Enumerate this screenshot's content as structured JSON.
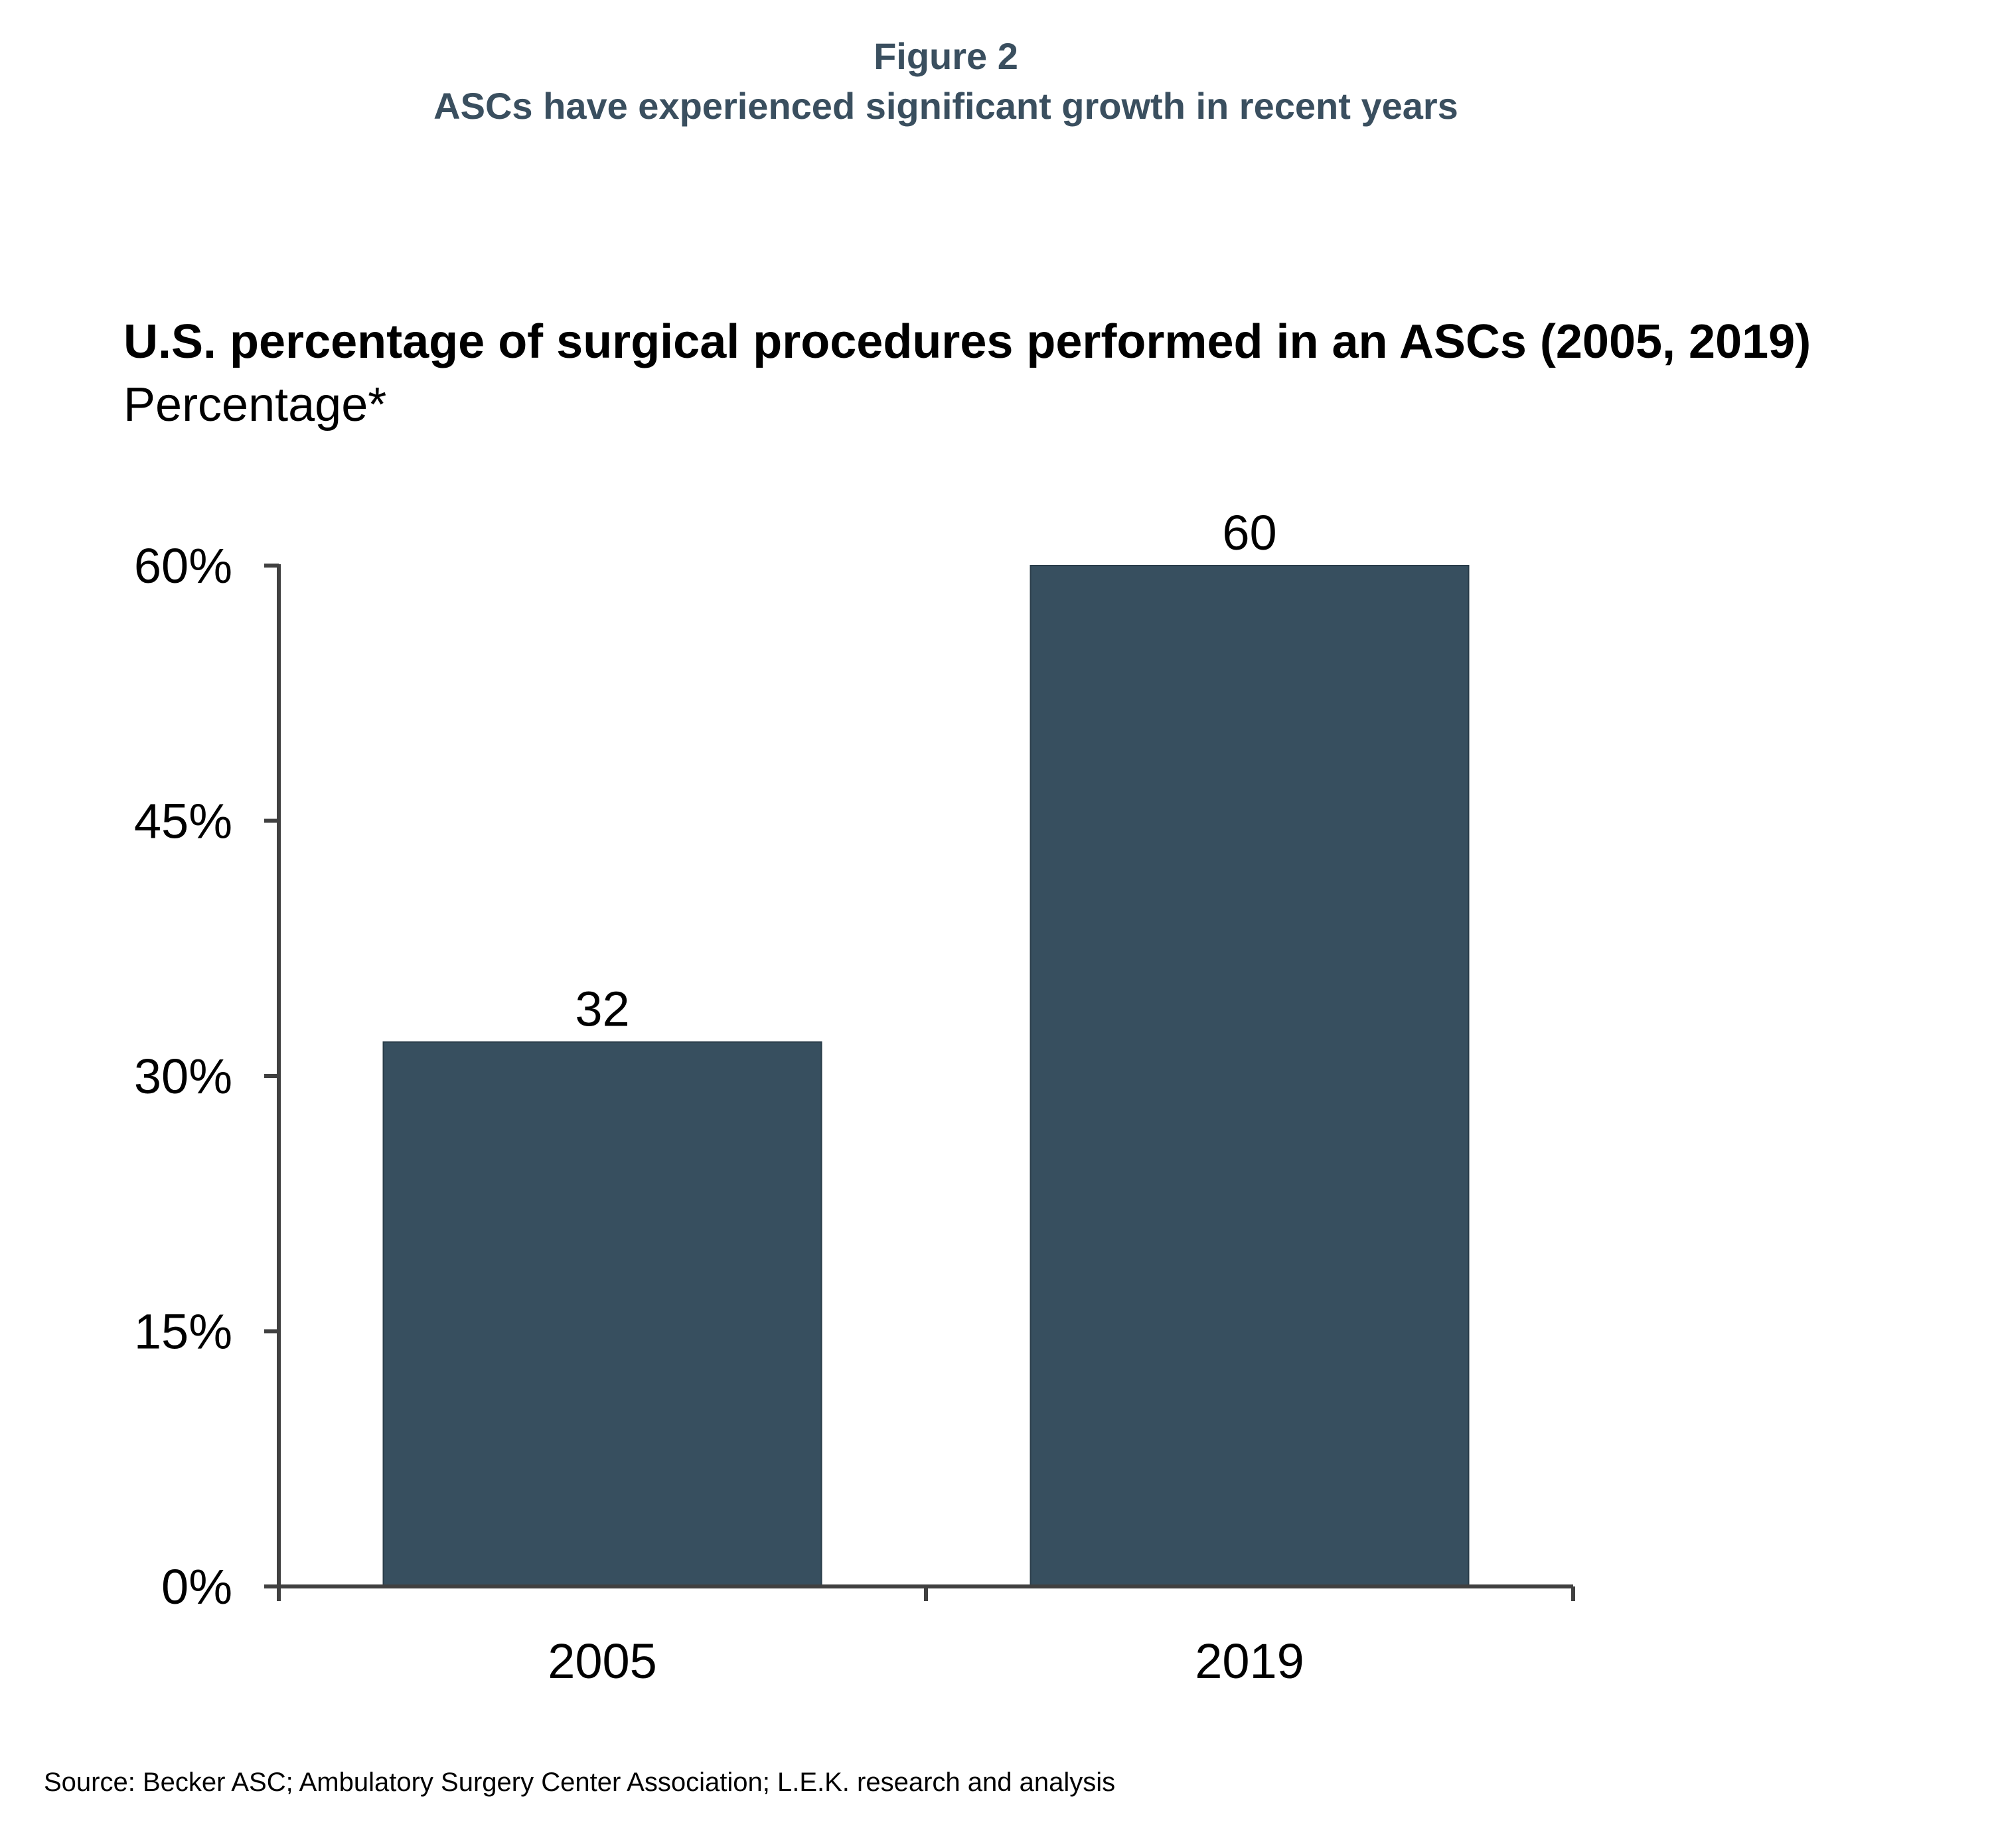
{
  "header": {
    "figure_label": "Figure 2",
    "figure_caption": "ASCs have experienced significant growth in recent years"
  },
  "chart_data": {
    "type": "bar",
    "title": "U.S. percentage of surgical procedures performed in an ASCs (2005, 2019)",
    "subtitle": "Percentage*",
    "categories": [
      "2005",
      "2019"
    ],
    "values": [
      32,
      60
    ],
    "data_labels": [
      "32",
      "60"
    ],
    "ylim": [
      0,
      60
    ],
    "yticks": [
      0,
      15,
      30,
      45,
      60
    ],
    "ytick_labels": [
      "0%",
      "15%",
      "30%",
      "45%",
      "60%"
    ],
    "xlabel": "",
    "ylabel": "",
    "grid": false,
    "legend": "none",
    "bar_color": "#374f5f",
    "axis_color": "#404040"
  },
  "footer": {
    "source": "Source:  Becker ASC; Ambulatory Surgery Center Association; L.E.K. research and analysis"
  }
}
